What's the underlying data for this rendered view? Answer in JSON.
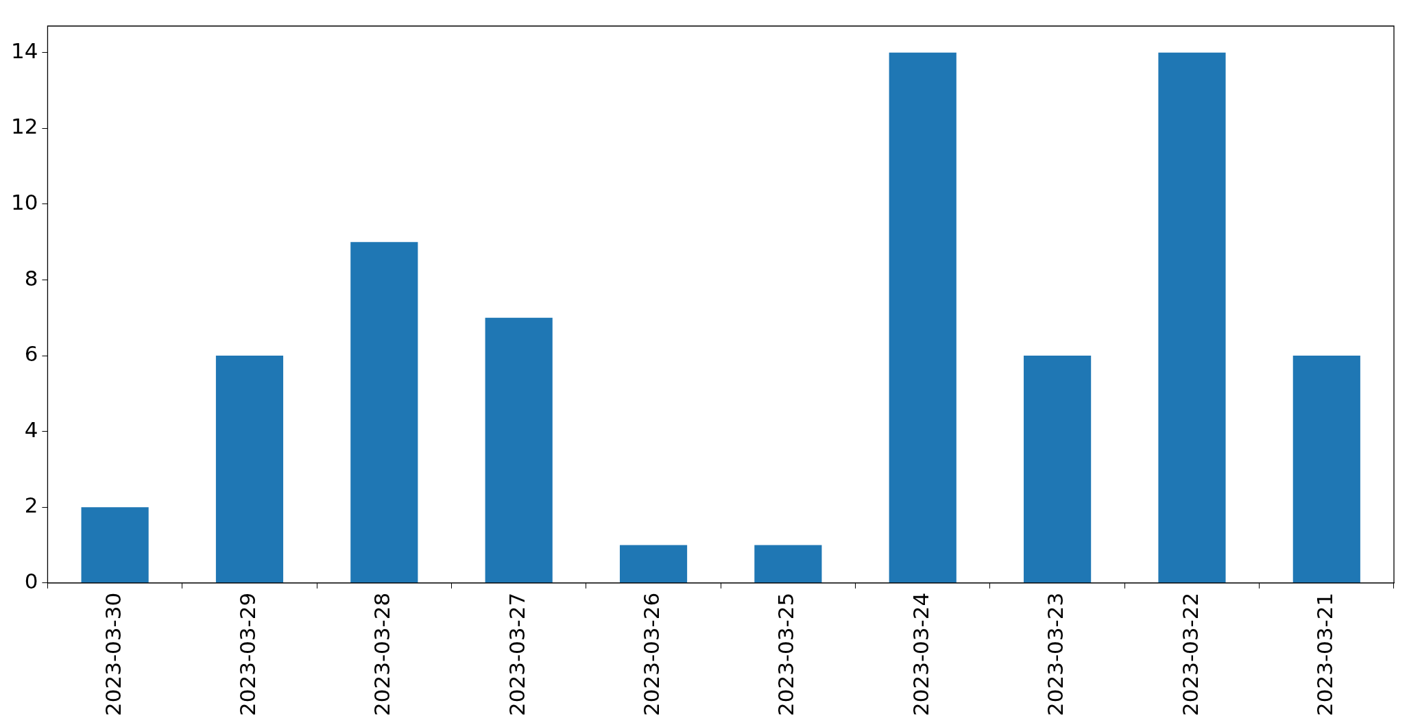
{
  "chart_data": {
    "type": "bar",
    "categories": [
      "2023-03-30",
      "2023-03-29",
      "2023-03-28",
      "2023-03-27",
      "2023-03-26",
      "2023-03-25",
      "2023-03-24",
      "2023-03-23",
      "2023-03-22",
      "2023-03-21"
    ],
    "values": [
      2,
      6,
      9,
      7,
      1,
      1,
      14,
      6,
      14,
      6
    ],
    "color": "#1f77b4",
    "ylim": [
      0,
      14.7
    ],
    "yticks": [
      0,
      2,
      4,
      6,
      8,
      10,
      12,
      14
    ],
    "grid": false,
    "legend": false
  }
}
